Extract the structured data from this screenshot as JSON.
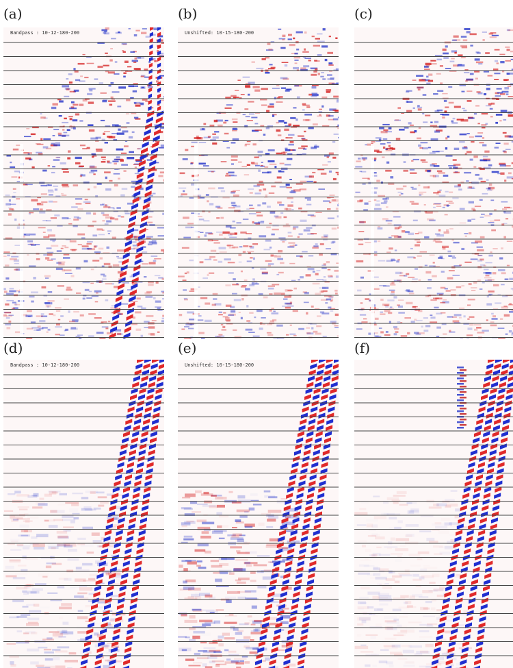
{
  "panels": [
    {
      "label": "(a)",
      "caption": "Bandpass : 10-12-180-200"
    },
    {
      "label": "(b)",
      "caption": "Unshifted: 10-15-180-200"
    },
    {
      "label": "(c)"
    },
    {
      "label": "(d)",
      "caption": "Bandpass : 10-12-180-200"
    },
    {
      "label": "(e)",
      "caption": "Unshifted: 10-15-180-200"
    },
    {
      "label": "(f)"
    }
  ]
}
